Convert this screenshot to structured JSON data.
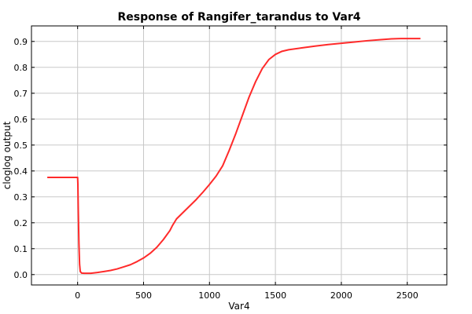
{
  "chart_data": {
    "type": "line",
    "title": "Response of Rangifer_tarandus to Var4",
    "xlabel": "Var4",
    "ylabel": "cloglog output",
    "xlim": [
      -350,
      2800
    ],
    "ylim": [
      -0.04,
      0.96
    ],
    "xticks": [
      0,
      500,
      1000,
      1500,
      2000,
      2500
    ],
    "yticks": [
      0.0,
      0.1,
      0.2,
      0.3,
      0.4,
      0.5,
      0.6,
      0.7,
      0.8,
      0.9
    ],
    "grid": true,
    "series": [
      {
        "name": "",
        "color": "#ff2a2a",
        "x": [
          -230,
          -100,
          0,
          2,
          5,
          10,
          15,
          20,
          30,
          50,
          100,
          150,
          200,
          250,
          300,
          350,
          400,
          450,
          500,
          550,
          600,
          650,
          700,
          720,
          750,
          800,
          850,
          900,
          950,
          1000,
          1050,
          1100,
          1150,
          1200,
          1250,
          1300,
          1350,
          1400,
          1450,
          1500,
          1550,
          1600,
          1700,
          1800,
          1900,
          2000,
          2100,
          2200,
          2300,
          2380,
          2450,
          2500,
          2600
        ],
        "y": [
          0.375,
          0.375,
          0.375,
          0.35,
          0.25,
          0.12,
          0.04,
          0.012,
          0.006,
          0.005,
          0.005,
          0.008,
          0.012,
          0.016,
          0.022,
          0.03,
          0.038,
          0.05,
          0.064,
          0.082,
          0.105,
          0.135,
          0.17,
          0.19,
          0.215,
          0.24,
          0.265,
          0.29,
          0.318,
          0.348,
          0.38,
          0.42,
          0.48,
          0.545,
          0.615,
          0.685,
          0.745,
          0.795,
          0.83,
          0.85,
          0.862,
          0.868,
          0.875,
          0.882,
          0.888,
          0.893,
          0.898,
          0.903,
          0.907,
          0.91,
          0.911,
          0.911,
          0.911
        ]
      }
    ]
  }
}
